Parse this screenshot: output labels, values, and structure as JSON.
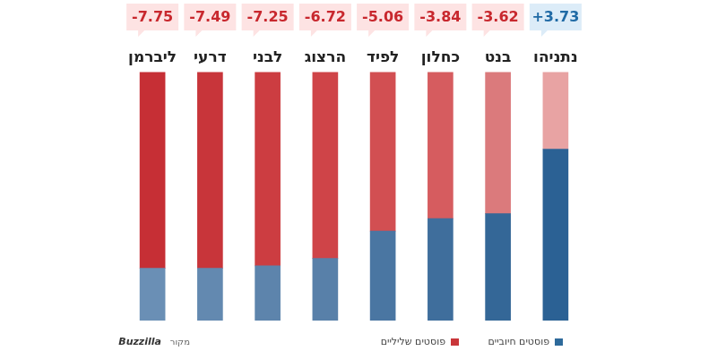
{
  "chart_data": {
    "type": "bar",
    "stacked": true,
    "grid": false,
    "tick_labels": "x",
    "legend": "bottom",
    "categories": [
      "ליברמן",
      "דרעי",
      "לבני",
      "הרצוג",
      "לפיד",
      "כחלון",
      "בנט",
      "נתניהו"
    ],
    "series": [
      {
        "name": "פוסטים חיוביים",
        "color": "#2e6a9b",
        "colors": [
          "#6a8fb5",
          "#6389b0",
          "#5d84ac",
          "#5880a9",
          "#4a76a2",
          "#3f6e9c",
          "#346797",
          "#2b6194"
        ],
        "values": [
          21,
          21,
          22,
          25,
          36,
          41,
          43,
          69
        ]
      },
      {
        "name": "פוסטים שליליים",
        "color": "#c9363a",
        "colors": [
          "#c62f35",
          "#c8353a",
          "#cc3d41",
          "#cf4448",
          "#d24f52",
          "#d65c5f",
          "#db7a7c",
          "#e8a3a3"
        ],
        "values": [
          79,
          79,
          78,
          75,
          64,
          59,
          57,
          31
        ]
      }
    ],
    "scores": [
      -7.75,
      -7.49,
      -7.25,
      -6.72,
      -5.06,
      -3.84,
      -3.62,
      3.73
    ],
    "score_labels": [
      "-7.75",
      "-7.49",
      "-7.25",
      "-6.72",
      "-5.06",
      "-3.84",
      "-3.62",
      "+3.73"
    ],
    "ylim": [
      0,
      100
    ],
    "source_label": "מקור",
    "source": "Buzzilla"
  }
}
